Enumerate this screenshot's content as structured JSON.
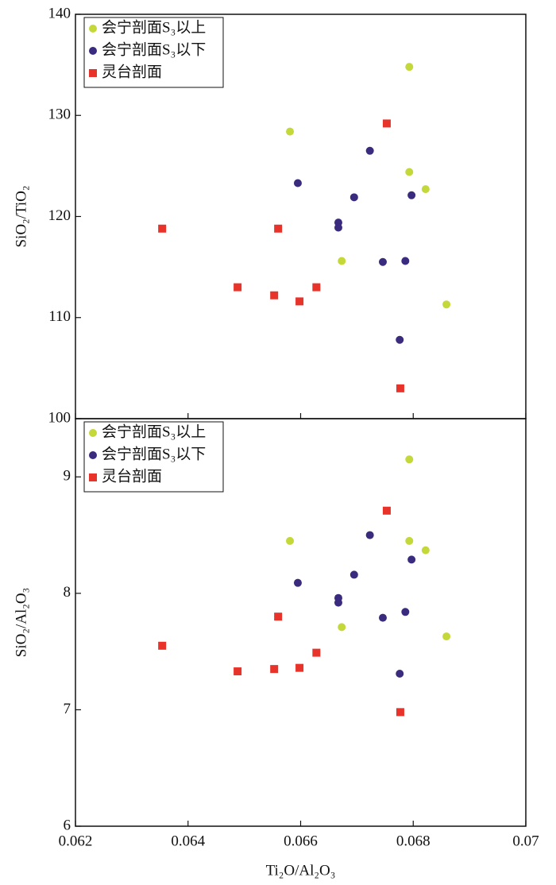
{
  "chart_data": [
    {
      "type": "scatter",
      "ylabel": "SiO₂/TiO₂",
      "legend": "upper left",
      "xlim": [
        0.062,
        0.07
      ],
      "xticks": [
        0.062,
        0.064,
        0.066,
        0.068,
        0.07
      ],
      "ylim": [
        100,
        140
      ],
      "yticks": [
        100,
        110,
        120,
        130,
        140
      ],
      "series": [
        {
          "name": "会宁剖面S₃以上",
          "color": "#c5d83a",
          "marker": "circle",
          "x": [
            0.06793,
            0.06581,
            0.06793,
            0.06822,
            0.06673,
            0.06859
          ],
          "values": [
            134.8,
            128.4,
            124.4,
            122.7,
            115.6,
            111.3
          ]
        },
        {
          "name": "会宁剖面S₃以下",
          "color": "#3a2b7e",
          "marker": "circle",
          "x": [
            0.06723,
            0.06595,
            0.06695,
            0.06797,
            0.06667,
            0.06667,
            0.06746,
            0.06786,
            0.06776
          ],
          "values": [
            126.5,
            123.3,
            121.9,
            122.1,
            119.4,
            118.9,
            115.5,
            115.6,
            107.8
          ]
        },
        {
          "name": "灵台剖面",
          "color": "#e8332a",
          "marker": "square",
          "x": [
            0.06753,
            0.06354,
            0.0656,
            0.06488,
            0.06553,
            0.06598,
            0.06628,
            0.06777
          ],
          "values": [
            129.2,
            118.8,
            118.8,
            113.0,
            112.2,
            111.6,
            113.0,
            103.0
          ]
        }
      ]
    },
    {
      "type": "scatter",
      "ylabel": "SiO₂/Al₂O₃",
      "xlabel": "Ti₂O/Al₂O₃",
      "legend": "upper left",
      "xlim": [
        0.062,
        0.07
      ],
      "xticks": [
        0.062,
        0.064,
        0.066,
        0.068,
        0.07
      ],
      "ylim": [
        6,
        9.5
      ],
      "yticks": [
        6,
        7,
        8,
        9
      ],
      "series": [
        {
          "name": "会宁剖面S₃以上",
          "color": "#c5d83a",
          "marker": "circle",
          "x": [
            0.06793,
            0.06581,
            0.06793,
            0.06822,
            0.06673,
            0.06859
          ],
          "values": [
            9.15,
            8.45,
            8.45,
            8.37,
            7.71,
            7.63
          ]
        },
        {
          "name": "会宁剖面S₃以下",
          "color": "#3a2b7e",
          "marker": "circle",
          "x": [
            0.06723,
            0.06595,
            0.06695,
            0.06797,
            0.06667,
            0.06667,
            0.06746,
            0.06786,
            0.06776
          ],
          "values": [
            8.5,
            8.09,
            8.16,
            8.29,
            7.96,
            7.92,
            7.79,
            7.84,
            7.31
          ]
        },
        {
          "name": "灵台剖面",
          "color": "#e8332a",
          "marker": "square",
          "x": [
            0.06753,
            0.06354,
            0.0656,
            0.06488,
            0.06553,
            0.06598,
            0.06628,
            0.06777
          ],
          "values": [
            8.71,
            7.55,
            7.8,
            7.33,
            7.35,
            7.36,
            7.49,
            6.98
          ]
        }
      ]
    }
  ]
}
